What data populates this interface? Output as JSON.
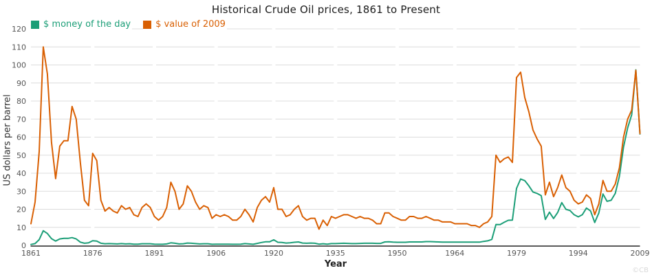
{
  "title": "Historical Crude Oil prices, 1861 to Present",
  "watermark": "©CB",
  "colors": {
    "series1": "#1b9e77",
    "series2": "#d95f02",
    "grid": "#dcdcdc",
    "axis": "#222222",
    "tick_text": "#555555",
    "title_text": "#1a1a1a",
    "watermark_text": "#d9d9d9"
  },
  "chart_data": {
    "type": "line",
    "title": "Historical Crude Oil prices, 1861 to Present",
    "xlabel": "Year",
    "ylabel": "US dollars per barrel",
    "x_start": 1861,
    "x_end": 2009,
    "x_step": 1,
    "x_ticks": [
      1861,
      1876,
      1891,
      1906,
      1920,
      1935,
      1950,
      1964,
      1979,
      1994,
      2009
    ],
    "ylim": [
      0,
      120
    ],
    "y_tick_step": 10,
    "grid": true,
    "legend_position": "top-left",
    "series": [
      {
        "name": "$ money of the day",
        "color": "#1b9e77",
        "values": [
          0.5,
          1.0,
          3.2,
          8.1,
          6.6,
          3.7,
          2.4,
          3.6,
          3.9,
          3.9,
          4.3,
          3.6,
          1.8,
          1.2,
          1.4,
          2.6,
          2.4,
          1.2,
          0.9,
          1.0,
          0.9,
          0.8,
          1.0,
          0.8,
          0.9,
          0.7,
          0.7,
          0.9,
          0.9,
          0.9,
          0.7,
          0.6,
          0.6,
          0.8,
          1.4,
          1.2,
          0.8,
          0.9,
          1.3,
          1.2,
          1.0,
          0.8,
          0.9,
          0.9,
          0.6,
          0.7,
          0.7,
          0.7,
          0.7,
          0.6,
          0.6,
          0.7,
          1.0,
          0.8,
          0.6,
          1.1,
          1.6,
          2.0,
          2.0,
          3.1,
          1.7,
          1.6,
          1.3,
          1.4,
          1.7,
          1.9,
          1.3,
          1.2,
          1.3,
          1.2,
          0.7,
          0.9,
          0.7,
          1.0,
          1.0,
          1.1,
          1.2,
          1.1,
          1.0,
          1.0,
          1.1,
          1.2,
          1.2,
          1.2,
          1.1,
          1.1,
          1.9,
          2.0,
          1.8,
          1.7,
          1.7,
          1.7,
          1.9,
          1.9,
          1.9,
          1.9,
          2.1,
          2.1,
          2.0,
          1.9,
          1.8,
          1.8,
          1.8,
          1.8,
          1.8,
          1.8,
          1.8,
          1.8,
          1.8,
          1.8,
          2.2,
          2.5,
          3.3,
          11.6,
          11.5,
          12.8,
          13.9,
          14.0,
          31.6,
          36.8,
          35.9,
          33.0,
          29.6,
          28.8,
          27.6,
          14.4,
          18.4,
          14.9,
          18.2,
          23.7,
          20.0,
          19.3,
          17.0,
          15.8,
          17.0,
          20.7,
          19.1,
          12.7,
          18.0,
          28.5,
          24.4,
          25.0,
          28.8,
          38.3,
          54.5,
          65.1,
          72.4,
          97.3,
          61.7
        ]
      },
      {
        "name": "$ value of 2009",
        "color": "#d95f02",
        "values": [
          12,
          24,
          52,
          110,
          95,
          57,
          37,
          55,
          58,
          58,
          77,
          70,
          46,
          25,
          22,
          51,
          47,
          25,
          19,
          21,
          19,
          18,
          22,
          20,
          21,
          17,
          16,
          21,
          23,
          21,
          16,
          14,
          16,
          21,
          35,
          30,
          20,
          23,
          33,
          30,
          24,
          20,
          22,
          21,
          15,
          17,
          16,
          17,
          16,
          14,
          14,
          16,
          20,
          17,
          13,
          21,
          25,
          27,
          24,
          32,
          20,
          20,
          16,
          17,
          20,
          22,
          16,
          14,
          15,
          15,
          9,
          14,
          11,
          16,
          15,
          16,
          17,
          17,
          16,
          15,
          16,
          15,
          15,
          14,
          12,
          12,
          18,
          18,
          16,
          15,
          14,
          14,
          16,
          16,
          15,
          15,
          16,
          15,
          14,
          14,
          13,
          13,
          13,
          12,
          12,
          12,
          12,
          11,
          11,
          10,
          12,
          13,
          16,
          50,
          46,
          48,
          49,
          46,
          93,
          96,
          82,
          74,
          64,
          59,
          55,
          28,
          35,
          27,
          32,
          39,
          32,
          30,
          25,
          23,
          24,
          28,
          26,
          17,
          23,
          36,
          30,
          30,
          34,
          43,
          60,
          70,
          75,
          97,
          62
        ]
      }
    ]
  }
}
